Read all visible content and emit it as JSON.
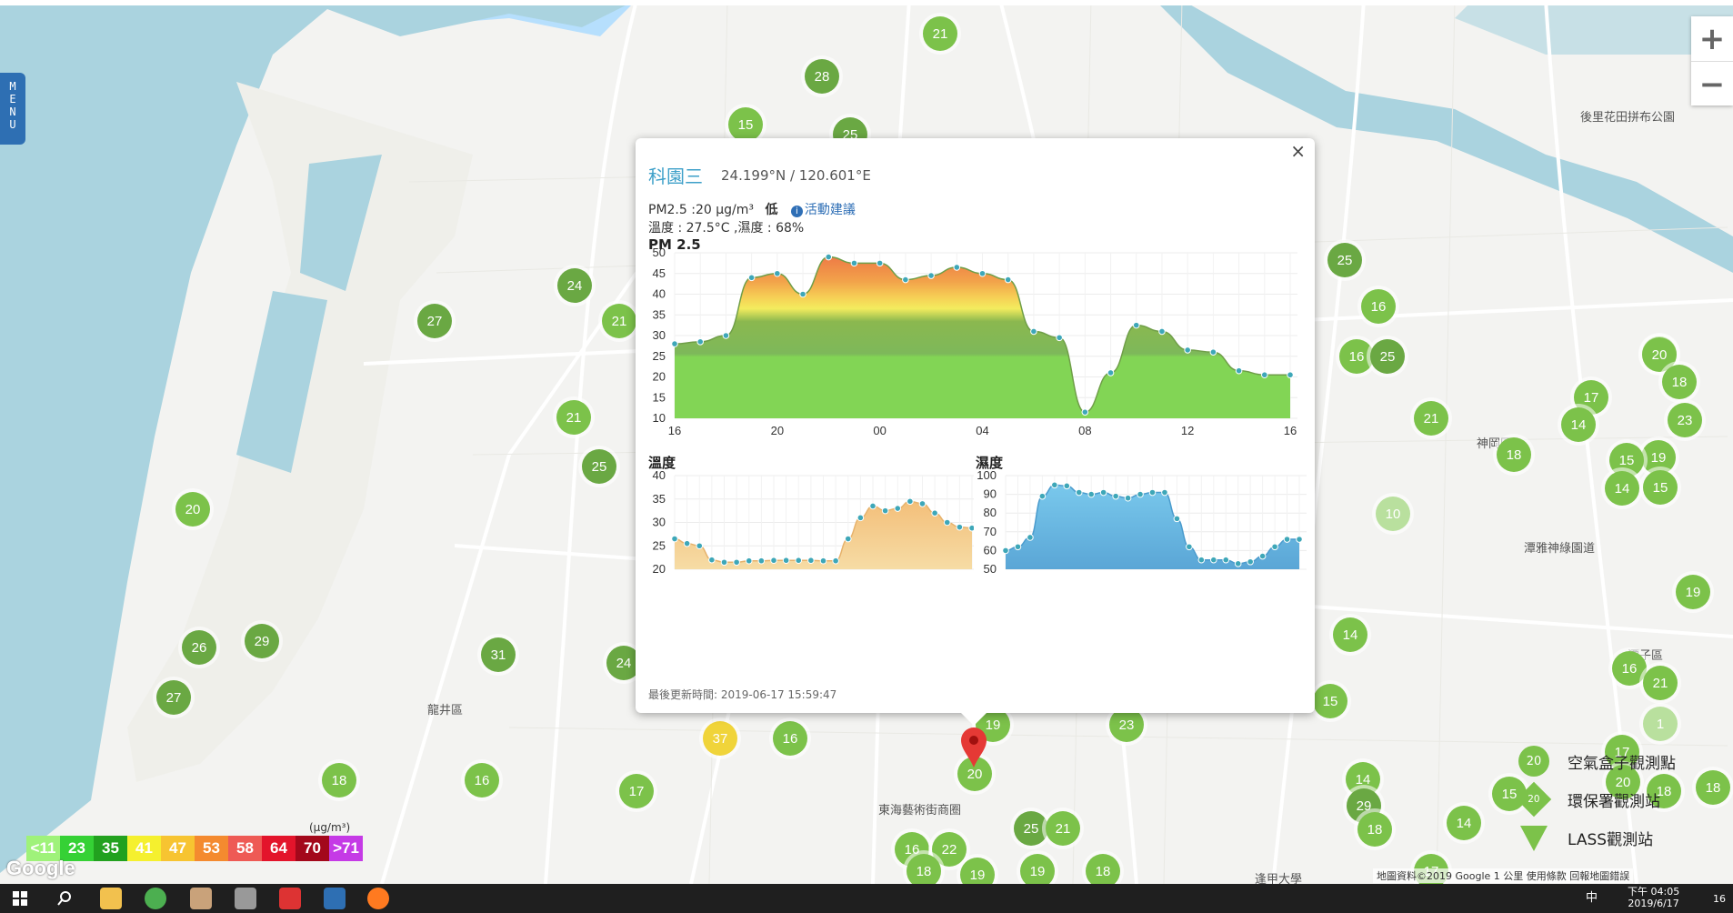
{
  "menu": {
    "label": "M\nE\nN\nU"
  },
  "zoom": {
    "in": "+",
    "out": "−"
  },
  "map_labels": {
    "longjing": "龍井區",
    "tunghai": "東海藝術街商圈",
    "taiping": "後里花田拼布公園",
    "shengang": "神岡區",
    "tanya": "潭雅神綠園道",
    "tanzi": "潭子區",
    "fengjia": "逢甲大學"
  },
  "markers": [
    {
      "v": "21",
      "c": "green"
    },
    {
      "v": "28",
      "c": "dark"
    },
    {
      "v": "15",
      "c": "green"
    },
    {
      "v": "25",
      "c": "dark"
    },
    {
      "v": "24",
      "c": "dark"
    },
    {
      "v": "27",
      "c": "dark"
    },
    {
      "v": "21",
      "c": "green"
    },
    {
      "v": "21",
      "c": "green"
    },
    {
      "v": "25",
      "c": "dark"
    },
    {
      "v": "20",
      "c": "green"
    },
    {
      "v": "26",
      "c": "dark"
    },
    {
      "v": "29",
      "c": "dark"
    },
    {
      "v": "27",
      "c": "dark"
    },
    {
      "v": "31",
      "c": "dark"
    },
    {
      "v": "24",
      "c": "dark"
    },
    {
      "v": "18",
      "c": "green"
    },
    {
      "v": "16",
      "c": "green"
    },
    {
      "v": "17",
      "c": "green"
    },
    {
      "v": "37",
      "c": "yellow"
    },
    {
      "v": "16",
      "c": "green"
    },
    {
      "v": "19",
      "c": "green"
    },
    {
      "v": "23",
      "c": "green"
    },
    {
      "v": "20",
      "c": "green"
    },
    {
      "v": "25",
      "c": "dark"
    },
    {
      "v": "21",
      "c": "green"
    },
    {
      "v": "16",
      "c": "green"
    },
    {
      "v": "22",
      "c": "green"
    },
    {
      "v": "18",
      "c": "green"
    },
    {
      "v": "19",
      "c": "green"
    },
    {
      "v": "18",
      "c": "green"
    },
    {
      "v": "17",
      "c": "green"
    },
    {
      "v": "19",
      "c": "green"
    },
    {
      "v": "16",
      "c": "green"
    },
    {
      "v": "25",
      "c": "dark"
    },
    {
      "v": "16",
      "c": "green"
    },
    {
      "v": "25",
      "c": "dark"
    },
    {
      "v": "21",
      "c": "green"
    },
    {
      "v": "19",
      "c": "green"
    },
    {
      "v": "18",
      "c": "green"
    },
    {
      "v": "20",
      "c": "green"
    },
    {
      "v": "18",
      "c": "green"
    },
    {
      "v": "17",
      "c": "green"
    },
    {
      "v": "14",
      "c": "green"
    },
    {
      "v": "23",
      "c": "green"
    },
    {
      "v": "19",
      "c": "green"
    },
    {
      "v": "15",
      "c": "green"
    },
    {
      "v": "15",
      "c": "green"
    },
    {
      "v": "14",
      "c": "green"
    },
    {
      "v": "10",
      "c": "pale"
    },
    {
      "v": "14",
      "c": "green"
    },
    {
      "v": "19",
      "c": "green"
    },
    {
      "v": "16",
      "c": "green"
    },
    {
      "v": "21",
      "c": "green"
    },
    {
      "v": "1",
      "c": "pale"
    },
    {
      "v": "17",
      "c": "green"
    },
    {
      "v": "15",
      "c": "green"
    },
    {
      "v": "14",
      "c": "green"
    },
    {
      "v": "29",
      "c": "dark"
    },
    {
      "v": "15",
      "c": "green"
    },
    {
      "v": "18",
      "c": "green"
    },
    {
      "v": "14",
      "c": "green"
    },
    {
      "v": "20",
      "c": "green"
    },
    {
      "v": "18",
      "c": "green"
    },
    {
      "v": "18",
      "c": "green"
    }
  ],
  "popup": {
    "close": "×",
    "station": "科園三",
    "coords": "24.199°N / 120.601°E",
    "pm25_line": "PM2.5 :20 μg/m³",
    "level": "低",
    "advice": "活動建議",
    "temp_humid": "溫度 : 27.5°C ,濕度 : 68%",
    "pm_heading": "PM 2.5",
    "temp_heading": "溫度",
    "humid_heading": "濕度",
    "updated": "最後更新時間: 2019-06-17 15:59:47"
  },
  "chart_data": [
    {
      "type": "area",
      "title": "PM 2.5",
      "x_ticks": [
        "16",
        "20",
        "00",
        "04",
        "08",
        "12",
        "16"
      ],
      "ylim": [
        10,
        50
      ],
      "y_ticks": [
        10,
        15,
        20,
        25,
        30,
        35,
        40,
        45,
        50
      ],
      "values": [
        28,
        28.5,
        30,
        44,
        45,
        40,
        49,
        47.5,
        47.5,
        43.5,
        44.5,
        46.5,
        45,
        43.5,
        31,
        29.5,
        11.5,
        21,
        32.5,
        31,
        26.5,
        26,
        21.5,
        20.5,
        20.5
      ]
    },
    {
      "type": "area",
      "title": "溫度",
      "ylim": [
        20,
        40
      ],
      "y_ticks": [
        20,
        25,
        30,
        35,
        40
      ],
      "values": [
        26.5,
        25.5,
        25,
        22,
        21.5,
        21.5,
        21.8,
        21.8,
        21.9,
        21.9,
        21.9,
        21.9,
        21.8,
        21.8,
        26.5,
        31,
        33.5,
        32.5,
        33,
        34.5,
        34,
        32,
        30,
        29,
        28.8
      ]
    },
    {
      "type": "area",
      "title": "濕度",
      "ylim": [
        50,
        100
      ],
      "y_ticks": [
        50,
        60,
        70,
        80,
        90,
        100
      ],
      "values": [
        60,
        62,
        67,
        89,
        95,
        94.5,
        91,
        90,
        91,
        89,
        88,
        90,
        91,
        91,
        77,
        62,
        55,
        55,
        55,
        53,
        54,
        57,
        62,
        66,
        66
      ]
    }
  ],
  "legend": {
    "unit": "(μg/m³)",
    "items": [
      {
        "label": "<11",
        "color": "#9ff27a"
      },
      {
        "label": "23",
        "color": "#35d135"
      },
      {
        "label": "35",
        "color": "#22a11f"
      },
      {
        "label": "41",
        "color": "#f5f02e"
      },
      {
        "label": "47",
        "color": "#f7c431"
      },
      {
        "label": "53",
        "color": "#f48a2f"
      },
      {
        "label": "58",
        "color": "#ee5a55"
      },
      {
        "label": "64",
        "color": "#e3142b"
      },
      {
        "label": "70",
        "color": "#a3081b"
      },
      {
        "label": ">71",
        "color": "#c53ae6"
      }
    ]
  },
  "google": "Google",
  "map_info": "地圖資料©2019 Google   1 公里      使用條款   回報地圖錯誤",
  "station_legend": {
    "airbox": "空氣盒子觀測點",
    "epa": "環保署觀測站",
    "lass": "LASS觀測站",
    "icon_value": "20"
  },
  "taskbar": {
    "time": "下午 04:05",
    "date": "2019/6/17",
    "ime": "中",
    "notif": "16"
  }
}
